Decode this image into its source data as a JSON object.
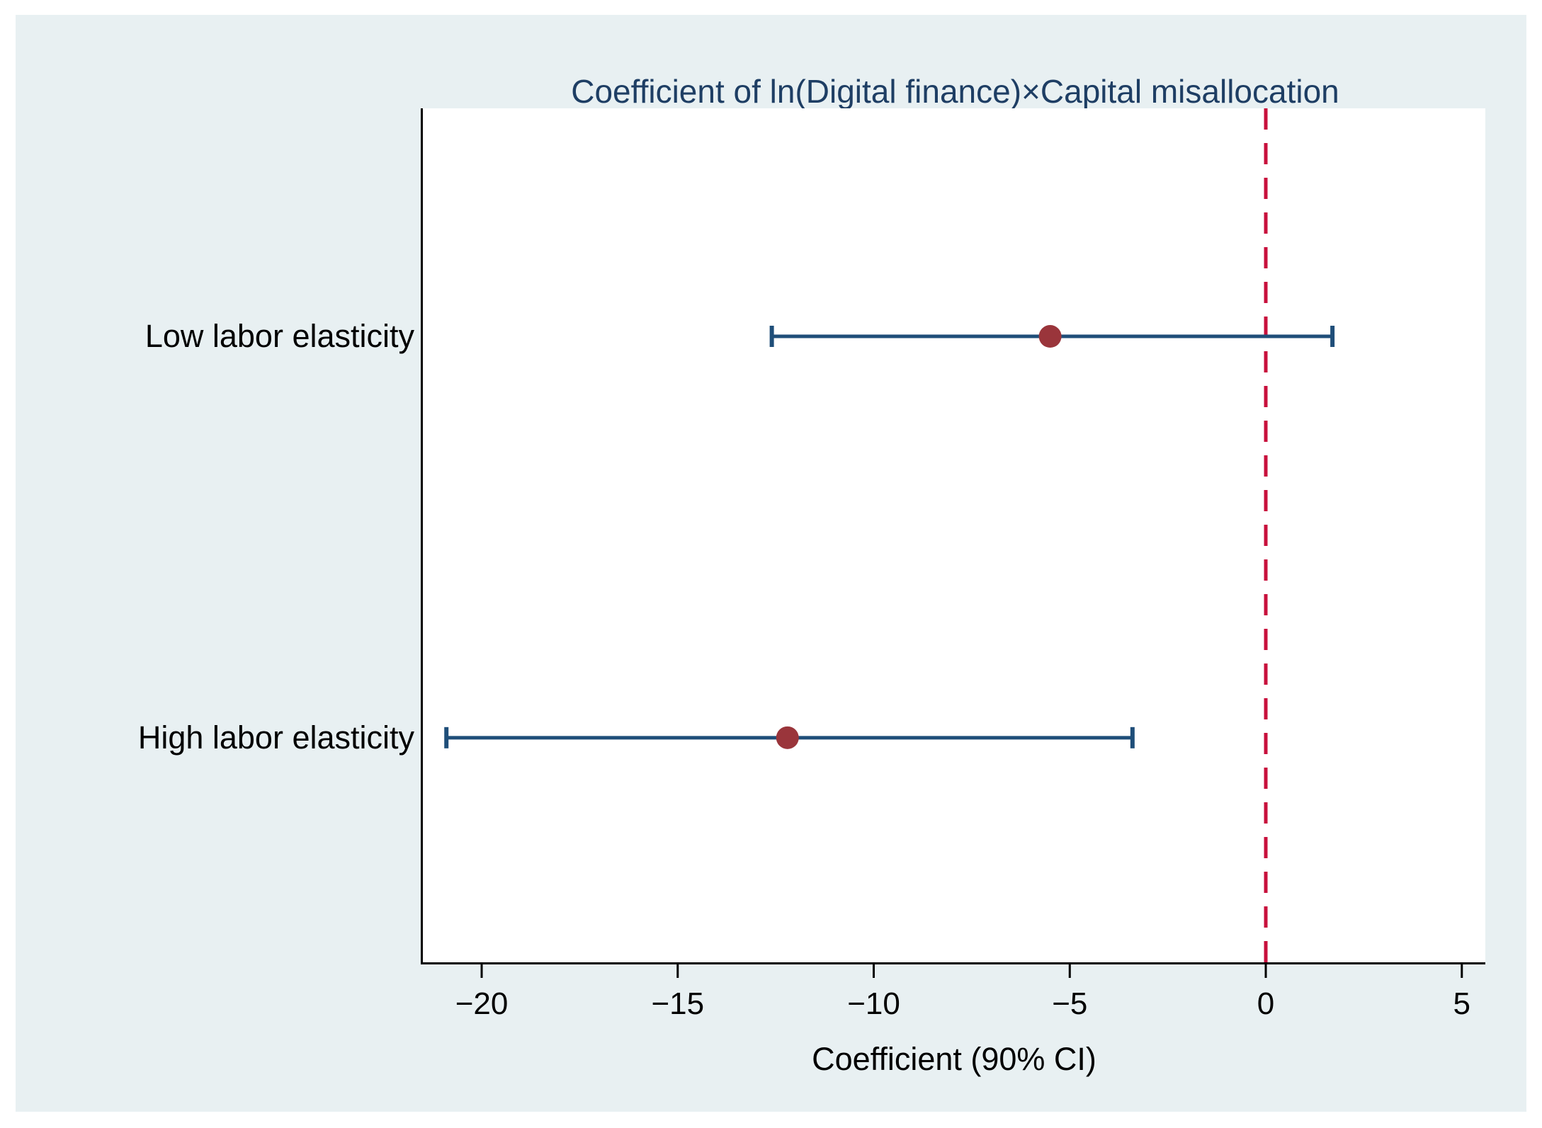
{
  "page": {
    "background": "#ffffff",
    "canvas_background": "#e8f0f2"
  },
  "chart_data": {
    "type": "scatter",
    "subtype": "horizontal-coefficient-plot-with-ci",
    "title": "Coefficient of ln(Digital finance)×Capital misallocation",
    "xlabel": "Coefficient (90% CI)",
    "ci_level": "90%",
    "categories": [
      "Low labor elasticity",
      "High labor elasticity"
    ],
    "points": [
      {
        "label": "Low labor elasticity",
        "estimate": -5.5,
        "ci_low": -12.6,
        "ci_high": 1.7,
        "y_frac": 0.267
      },
      {
        "label": "High labor elasticity",
        "estimate": -12.2,
        "ci_low": -20.9,
        "ci_high": -3.4,
        "y_frac": 0.737
      }
    ],
    "xlim": [
      -21.5,
      5.6
    ],
    "xticks": [
      {
        "value": -20,
        "label": "−20"
      },
      {
        "value": -15,
        "label": "−15"
      },
      {
        "value": -10,
        "label": "−10"
      },
      {
        "value": -5,
        "label": "−5"
      },
      {
        "value": 0,
        "label": "0"
      },
      {
        "value": 5,
        "label": "5"
      }
    ],
    "zero_line": {
      "value": 0,
      "style": "dashed",
      "color": "#c8103c"
    },
    "grid": "off",
    "legend": "none",
    "colors": {
      "ci_line": "#1f4e79",
      "marker": "#9a353b",
      "axis": "#000000",
      "tick_text": "#000000",
      "title_text": "#1e3e64"
    }
  }
}
